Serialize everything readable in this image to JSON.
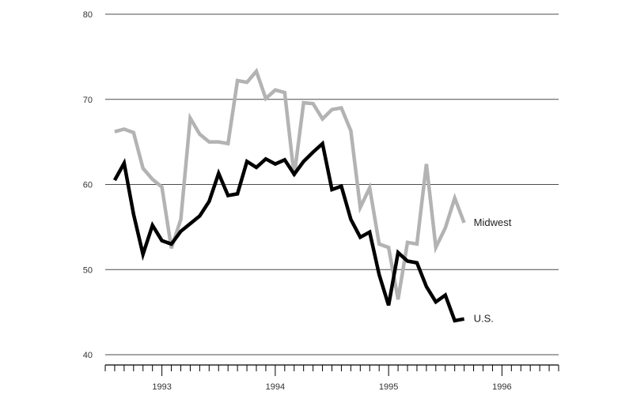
{
  "chart_data": {
    "type": "line",
    "title": "",
    "xlabel": "",
    "ylabel": "",
    "ylim": [
      40,
      80
    ],
    "yticks": [
      40,
      50,
      60,
      70,
      80
    ],
    "xlim": [
      1992.5,
      1996.5
    ],
    "xticks": [
      "1993",
      "1994",
      "1995",
      "1996"
    ],
    "grid": true,
    "x_start": 1992.5,
    "x_step_months": 1,
    "series": [
      {
        "name": "U.S.",
        "color": "#000000",
        "values": [
          60.5,
          62.5,
          56.5,
          51.8,
          55.2,
          53.4,
          53.0,
          54.5,
          55.4,
          56.3,
          58.0,
          61.3,
          58.7,
          58.9,
          62.7,
          62.0,
          63.0,
          62.4,
          62.9,
          61.2,
          62.7,
          63.8,
          64.8,
          59.4,
          59.8,
          55.9,
          53.8,
          54.4,
          49.4,
          45.8,
          52.0,
          51.0,
          50.8,
          48.0,
          46.2,
          47.0,
          44.0,
          44.2
        ]
      },
      {
        "name": "Midwest",
        "color": "#b3b3b3",
        "values": [
          66.2,
          66.5,
          66.1,
          61.9,
          60.6,
          59.7,
          52.5,
          55.9,
          67.8,
          65.9,
          65.0,
          65.0,
          64.8,
          72.2,
          72.0,
          73.3,
          70.1,
          71.1,
          70.8,
          61.0,
          69.6,
          69.5,
          67.7,
          68.8,
          69.0,
          66.3,
          57.3,
          59.6,
          53.0,
          52.6,
          46.5,
          53.2,
          53.0,
          62.4,
          52.6,
          54.9,
          58.4,
          55.5
        ]
      }
    ]
  }
}
